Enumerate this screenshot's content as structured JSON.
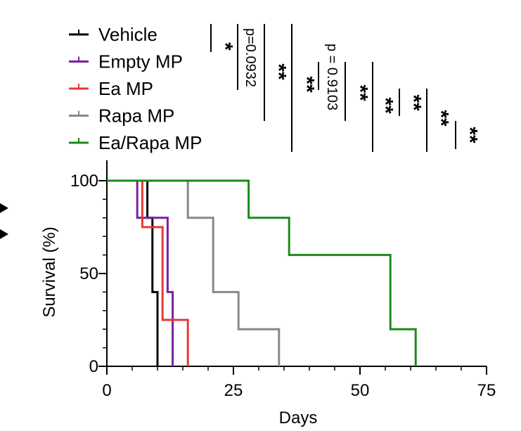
{
  "chart_data": {
    "type": "line",
    "step": true,
    "xlabel": "Days",
    "ylabel": "Survival (%)",
    "xlim": [
      0,
      75
    ],
    "ylim": [
      0,
      100
    ],
    "xticks": [
      0,
      25,
      50,
      75
    ],
    "yticks": [
      0,
      50,
      100
    ],
    "grid": false,
    "legend_position": "top-left",
    "series": [
      {
        "name": "Vehicle",
        "color": "#000000",
        "points": [
          [
            0,
            100
          ],
          [
            8,
            100
          ],
          [
            8,
            80
          ],
          [
            9,
            80
          ],
          [
            9,
            40
          ],
          [
            10,
            40
          ],
          [
            10,
            0
          ]
        ]
      },
      {
        "name": "Empty MP",
        "color": "#7b1fa2",
        "points": [
          [
            0,
            100
          ],
          [
            6,
            100
          ],
          [
            6,
            80
          ],
          [
            12,
            80
          ],
          [
            12,
            40
          ],
          [
            13,
            40
          ],
          [
            13,
            0
          ]
        ]
      },
      {
        "name": "Ea MP",
        "color": "#e53935",
        "points": [
          [
            0,
            100
          ],
          [
            7,
            100
          ],
          [
            7,
            75
          ],
          [
            11,
            75
          ],
          [
            11,
            25
          ],
          [
            16,
            25
          ],
          [
            16,
            0
          ]
        ]
      },
      {
        "name": "Rapa MP",
        "color": "#888888",
        "points": [
          [
            0,
            100
          ],
          [
            16,
            100
          ],
          [
            16,
            80
          ],
          [
            21,
            80
          ],
          [
            21,
            40
          ],
          [
            26,
            40
          ],
          [
            26,
            20
          ],
          [
            34,
            20
          ],
          [
            34,
            0
          ]
        ]
      },
      {
        "name": "Ea/Rapa MP",
        "color": "#1b8a1b",
        "points": [
          [
            0,
            100
          ],
          [
            28,
            100
          ],
          [
            28,
            80
          ],
          [
            36,
            80
          ],
          [
            36,
            60
          ],
          [
            56,
            60
          ],
          [
            56,
            20
          ],
          [
            61,
            20
          ],
          [
            61,
            0
          ]
        ]
      }
    ],
    "significance": [
      {
        "label": "*"
      },
      {
        "label": "p=0.0932"
      },
      {
        "label": "**"
      },
      {
        "label": "**"
      },
      {
        "label": "p = 0.9103"
      },
      {
        "label": "**"
      },
      {
        "label": "**"
      },
      {
        "label": "**"
      },
      {
        "label": "**"
      },
      {
        "label": "**"
      }
    ]
  }
}
